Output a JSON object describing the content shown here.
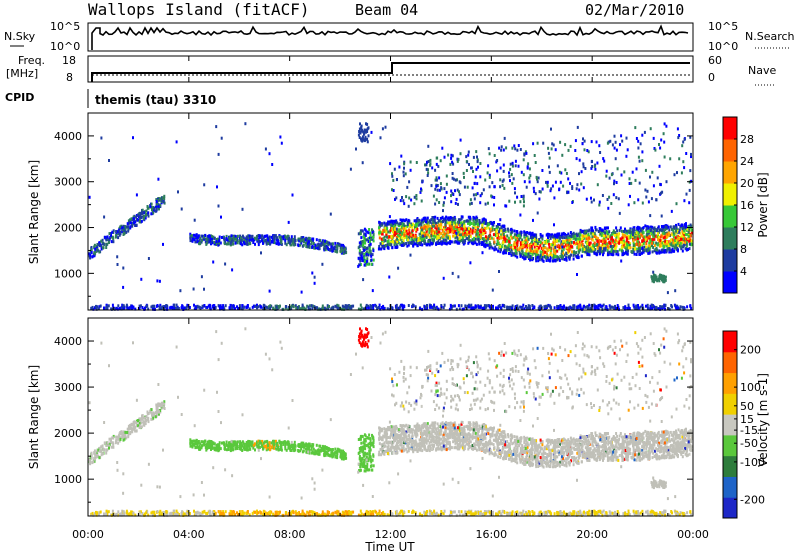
{
  "header": {
    "station": "Wallops Island (fitACF)",
    "beam": "Beam 04",
    "date": "02/Mar/2010"
  },
  "panels": {
    "nsky_label": "N.Sky",
    "nsky_ticks": [
      "10^5",
      "10^0"
    ],
    "nsearch_label": "N.Search",
    "nsearch_ticks": [
      "10^5",
      "10^0"
    ],
    "freq_label": "Freq.",
    "freq_unit": "[MHz]",
    "freq_ticks": [
      "18",
      "8"
    ],
    "nave_label": "Nave",
    "nave_ticks": [
      "60",
      "0"
    ],
    "cpid_label": "CPID",
    "cpid_text": "themis (tau) 3310"
  },
  "colors": {
    "power_scale": [
      "#0000ff",
      "#1e3ca0",
      "#2e7d5c",
      "#37c837",
      "#f0f000",
      "#ffa500",
      "#ff6400",
      "#ff0000"
    ],
    "velocity_scale": [
      "#1e28c8",
      "#1e64c8",
      "#2e7d3c",
      "#5ac83c",
      "#c8c8c0",
      "#f0d000",
      "#ffa000",
      "#ff6400",
      "#ff0000"
    ],
    "ground_scatter": "#c0c0b8"
  },
  "chart_data": [
    {
      "type": "heatmap",
      "title": "",
      "xlabel": "Time UT",
      "ylabel": "Slant Range [km]",
      "x_ticks": [
        "00:00",
        "04:00",
        "08:00",
        "12:00",
        "16:00",
        "20:00",
        "00:00"
      ],
      "xlim_hours": [
        0,
        24
      ],
      "ylim": [
        200,
        4500
      ],
      "y_ticks": [
        1000,
        2000,
        3000,
        4000
      ],
      "colorbar_label": "Power [dB]",
      "colorbar_ticks": [
        4,
        8,
        12,
        16,
        20,
        24,
        28
      ],
      "colorbar_range": [
        0,
        32
      ],
      "bands": [
        {
          "name": "early echo ramp",
          "t": [
            0.0,
            3.0
          ],
          "range_start": [
            1450,
            2700
          ],
          "level": "low"
        },
        {
          "name": "morning band",
          "t": [
            4.0,
            10.2
          ],
          "range_start": [
            1850,
            1500
          ],
          "level": "low"
        },
        {
          "name": "main band",
          "t": [
            11.5,
            24.0
          ],
          "range_center": [
            1850,
            1900
          ],
          "level": "high"
        },
        {
          "name": "near range",
          "t": [
            0.0,
            24.0
          ],
          "range_center": [
            250,
            250
          ],
          "level": "low"
        }
      ]
    },
    {
      "type": "heatmap",
      "title": "",
      "xlabel": "Time UT",
      "ylabel": "Slant Range [km]",
      "x_ticks": [
        "00:00",
        "04:00",
        "08:00",
        "12:00",
        "16:00",
        "20:00",
        "00:00"
      ],
      "xlim_hours": [
        0,
        24
      ],
      "ylim": [
        200,
        4500
      ],
      "y_ticks": [
        1000,
        2000,
        3000,
        4000
      ],
      "colorbar_label": "Velocity [m s-1]",
      "colorbar_ticks": [
        200,
        100,
        50,
        15,
        -15,
        -50,
        -100,
        -200
      ],
      "colorbar_range": [
        -250,
        250
      ],
      "notes": "ground scatter drawn in gray; morning band green, near-range orange"
    }
  ]
}
